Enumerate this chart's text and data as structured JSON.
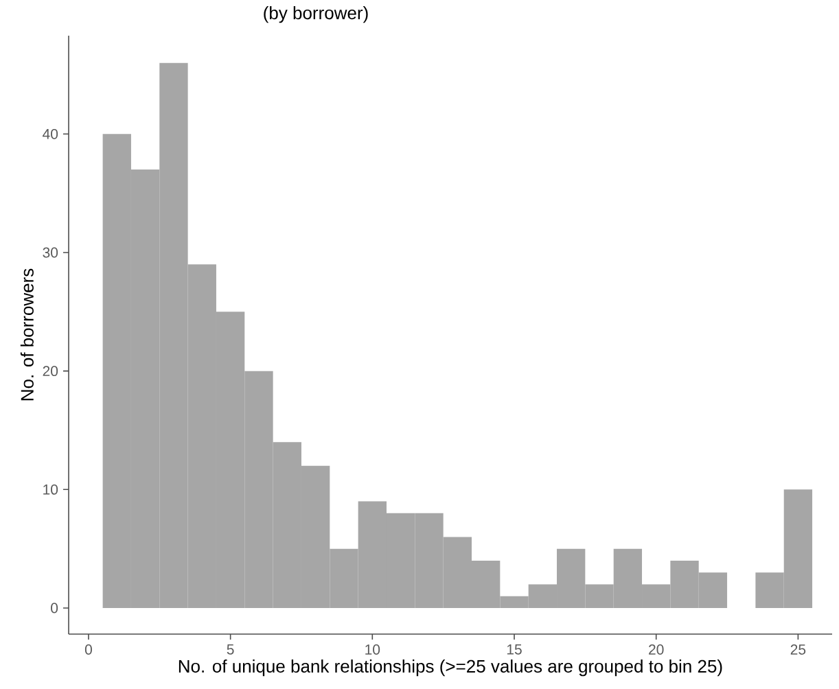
{
  "chart_data": {
    "type": "histogram",
    "title": "(by borrower)",
    "xlabel": "No. of unique bank relationships (>=25 values are grouped to bin 25)",
    "ylabel": "No. of borrowers",
    "bins": [
      0.5,
      1.5,
      2.5,
      3.5,
      4.5,
      5.5,
      6.5,
      7.5,
      8.5,
      9.5,
      10.5,
      11.5,
      12.5,
      13.5,
      14.5,
      15.5,
      16.5,
      17.5,
      18.5,
      19.5,
      20.5,
      21.5,
      22.5,
      23.5,
      24.5,
      25.5
    ],
    "values": [
      40,
      37,
      46,
      29,
      25,
      20,
      14,
      12,
      5,
      9,
      8,
      8,
      6,
      4,
      1,
      2,
      5,
      2,
      5,
      2,
      4,
      3,
      0,
      3,
      10
    ],
    "color": "#a6a6a6",
    "xlim": [
      -0.7,
      26.2
    ],
    "ylim": [
      -2.2,
      48.3
    ],
    "xticks": [
      0,
      5,
      10,
      15,
      20,
      25
    ],
    "yticks": [
      0,
      10,
      20,
      30,
      40
    ],
    "grid": false
  }
}
